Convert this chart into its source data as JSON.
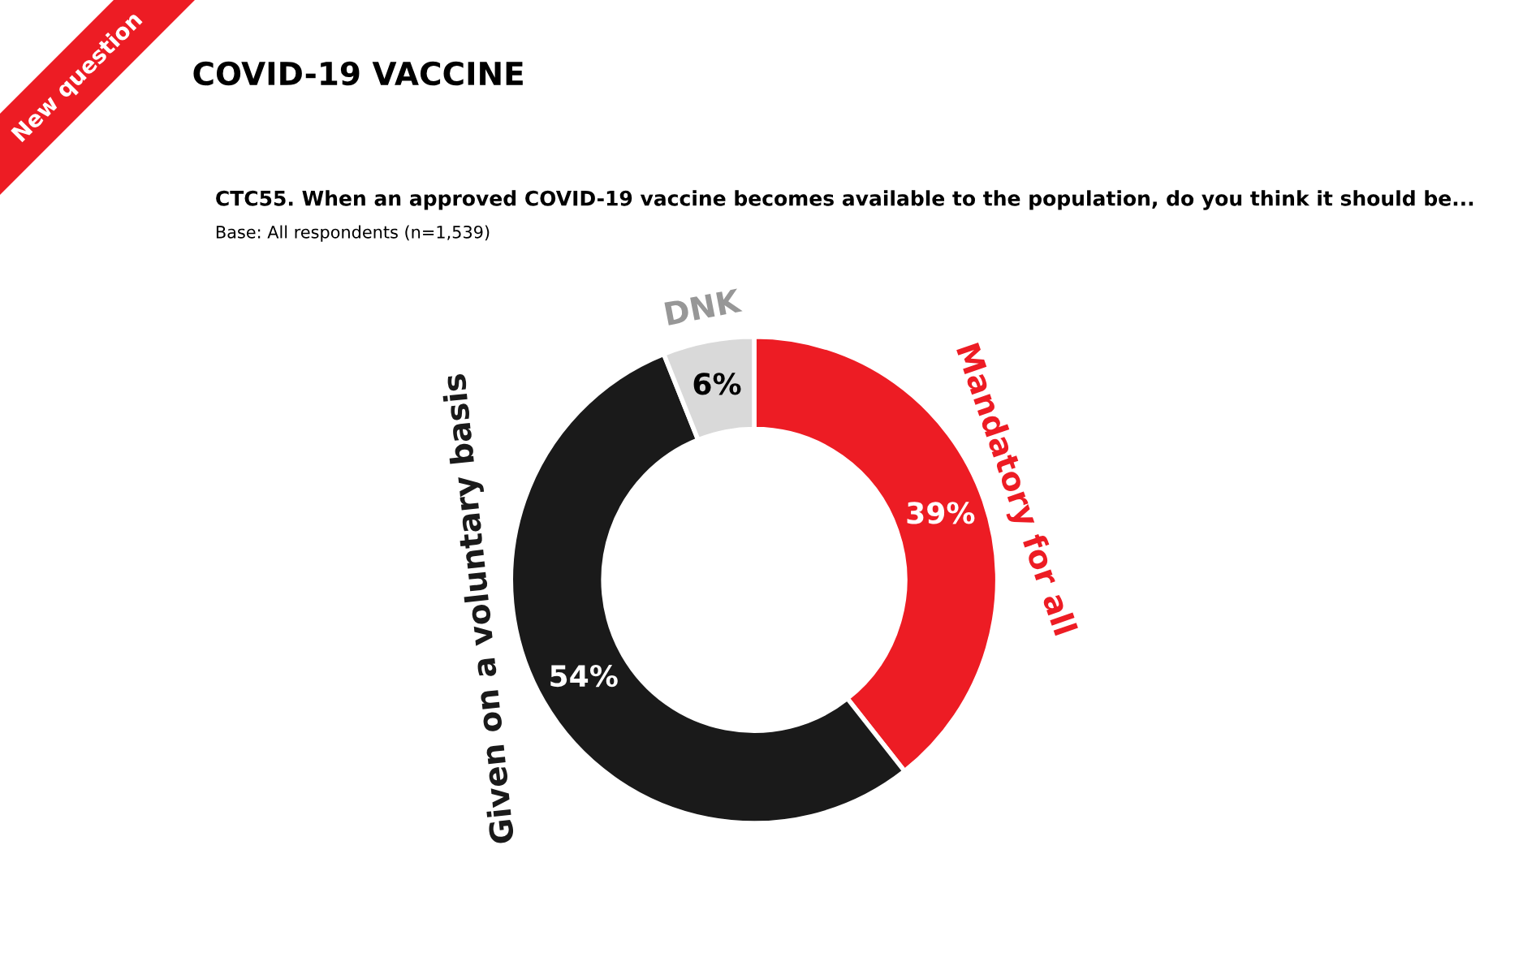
{
  "chart_data": {
    "type": "donut",
    "title": "COVID-19 VACCINE",
    "subtitle": "CTC55. When an approved COVID-19 vaccine becomes available to the population, do you think it should be...",
    "annotations": [
      "Base: All respondents (n=1,539)",
      "New question"
    ],
    "categories": [
      "Mandatory for all",
      "Given on a voluntary basis",
      "DNK"
    ],
    "values": [
      39,
      54,
      6
    ],
    "colors": [
      "#ed1c24",
      "#1a1a1a",
      "#d9d9d9"
    ],
    "value_labels": [
      "39%",
      "54%",
      "6%"
    ],
    "legend": false
  }
}
